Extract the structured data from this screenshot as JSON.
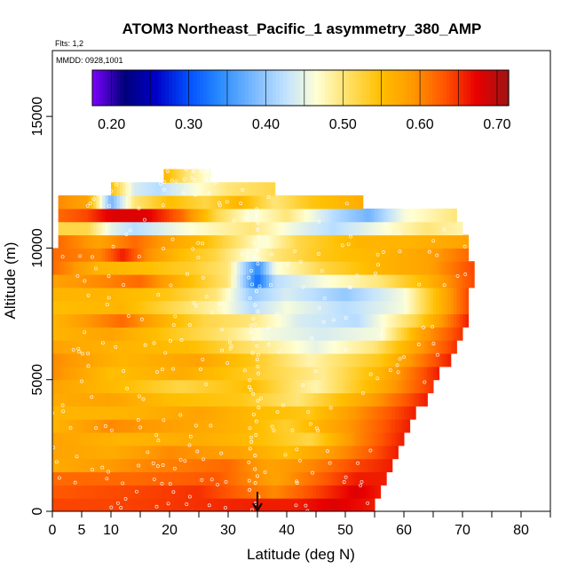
{
  "chart_data": {
    "type": "heatmap",
    "title": "ATOM3 Northeast_Pacific_1 asymmetry_380_AMP",
    "annotations": {
      "flights": "Flts: 1,2",
      "dates": "MMDD: 0928,1001"
    },
    "xlabel": "Latitude (deg N)",
    "ylabel": "Altitude (m)",
    "xlim": [
      0,
      85
    ],
    "ylim": [
      0,
      17500
    ],
    "x_ticks": [
      0,
      5,
      10,
      20,
      30,
      40,
      50,
      60,
      70,
      80
    ],
    "x_minor_ticks": [
      15,
      25,
      35,
      45,
      55,
      65,
      75,
      85
    ],
    "y_ticks": [
      0,
      5000,
      10000,
      15000
    ],
    "colorbar": {
      "min": 0.175,
      "max": 0.715,
      "ticks": [
        0.2,
        0.3,
        0.4,
        0.5,
        0.6,
        0.7
      ],
      "tick_labels": [
        "0.20",
        "0.30",
        "0.40",
        "0.50",
        "0.60",
        "0.70"
      ],
      "colors": [
        "#7d00ff",
        "#00007a",
        "#0000c8",
        "#0050ff",
        "#2b8cff",
        "#76b7ff",
        "#bfe1ff",
        "#ffffd5",
        "#ffe066",
        "#ffbf00",
        "#ff9900",
        "#ff5500",
        "#e80000",
        "#a01414"
      ]
    },
    "marker": {
      "latitude": 35,
      "label": "arrow"
    },
    "rows": [
      {
        "alt_low": 0,
        "alt_high": 500,
        "lat_min": 0,
        "lat_max": 55,
        "values": [
          [
            0,
            0.64
          ],
          [
            10,
            0.64
          ],
          [
            25,
            0.65
          ],
          [
            36,
            0.66
          ],
          [
            42,
            0.66
          ],
          [
            48,
            0.68
          ],
          [
            55,
            0.66
          ]
        ]
      },
      {
        "alt_low": 500,
        "alt_high": 1000,
        "lat_min": 0,
        "lat_max": 56,
        "values": [
          [
            0,
            0.63
          ],
          [
            15,
            0.64
          ],
          [
            25,
            0.65
          ],
          [
            38,
            0.6
          ],
          [
            45,
            0.64
          ],
          [
            52,
            0.68
          ],
          [
            56,
            0.66
          ]
        ]
      },
      {
        "alt_low": 1000,
        "alt_high": 1500,
        "lat_min": 0,
        "lat_max": 57,
        "values": [
          [
            0,
            0.62
          ],
          [
            15,
            0.62
          ],
          [
            28,
            0.63
          ],
          [
            38,
            0.58
          ],
          [
            45,
            0.62
          ],
          [
            52,
            0.66
          ],
          [
            57,
            0.66
          ]
        ]
      },
      {
        "alt_low": 1500,
        "alt_high": 2000,
        "lat_min": 0,
        "lat_max": 58,
        "values": [
          [
            0,
            0.57
          ],
          [
            15,
            0.6
          ],
          [
            30,
            0.62
          ],
          [
            37,
            0.58
          ],
          [
            44,
            0.6
          ],
          [
            52,
            0.64
          ],
          [
            58,
            0.66
          ]
        ]
      },
      {
        "alt_low": 2000,
        "alt_high": 2500,
        "lat_min": 0,
        "lat_max": 59,
        "values": [
          [
            0,
            0.58
          ],
          [
            10,
            0.57
          ],
          [
            20,
            0.6
          ],
          [
            32,
            0.58
          ],
          [
            40,
            0.55
          ],
          [
            50,
            0.6
          ],
          [
            59,
            0.66
          ]
        ]
      },
      {
        "alt_low": 2500,
        "alt_high": 3000,
        "lat_min": 0,
        "lat_max": 60,
        "values": [
          [
            0,
            0.58
          ],
          [
            12,
            0.56
          ],
          [
            25,
            0.57
          ],
          [
            35,
            0.55
          ],
          [
            44,
            0.52
          ],
          [
            52,
            0.6
          ],
          [
            60,
            0.66
          ]
        ]
      },
      {
        "alt_low": 3000,
        "alt_high": 3500,
        "lat_min": 0,
        "lat_max": 61,
        "values": [
          [
            0,
            0.56
          ],
          [
            10,
            0.6
          ],
          [
            22,
            0.58
          ],
          [
            33,
            0.56
          ],
          [
            40,
            0.53
          ],
          [
            52,
            0.6
          ],
          [
            61,
            0.66
          ]
        ]
      },
      {
        "alt_low": 3500,
        "alt_high": 4000,
        "lat_min": 0,
        "lat_max": 62,
        "values": [
          [
            0,
            0.56
          ],
          [
            12,
            0.56
          ],
          [
            25,
            0.58
          ],
          [
            36,
            0.55
          ],
          [
            44,
            0.54
          ],
          [
            53,
            0.6
          ],
          [
            62,
            0.66
          ]
        ]
      },
      {
        "alt_low": 4000,
        "alt_high": 4500,
        "lat_min": 0,
        "lat_max": 64,
        "values": [
          [
            0,
            0.57
          ],
          [
            10,
            0.58
          ],
          [
            20,
            0.55
          ],
          [
            32,
            0.54
          ],
          [
            42,
            0.5
          ],
          [
            54,
            0.58
          ],
          [
            64,
            0.66
          ]
        ]
      },
      {
        "alt_low": 4500,
        "alt_high": 5000,
        "lat_min": 0,
        "lat_max": 65,
        "values": [
          [
            0,
            0.58
          ],
          [
            12,
            0.55
          ],
          [
            22,
            0.52
          ],
          [
            34,
            0.55
          ],
          [
            45,
            0.48
          ],
          [
            55,
            0.56
          ],
          [
            65,
            0.65
          ]
        ]
      },
      {
        "alt_low": 5000,
        "alt_high": 5500,
        "lat_min": 0,
        "lat_max": 66,
        "values": [
          [
            0,
            0.6
          ],
          [
            10,
            0.55
          ],
          [
            22,
            0.57
          ],
          [
            35,
            0.53
          ],
          [
            46,
            0.49
          ],
          [
            56,
            0.56
          ],
          [
            66,
            0.66
          ]
        ]
      },
      {
        "alt_low": 5500,
        "alt_high": 6000,
        "lat_min": 0,
        "lat_max": 68,
        "values": [
          [
            0,
            0.6
          ],
          [
            12,
            0.56
          ],
          [
            25,
            0.58
          ],
          [
            34,
            0.54
          ],
          [
            44,
            0.48
          ],
          [
            56,
            0.54
          ],
          [
            68,
            0.66
          ]
        ]
      },
      {
        "alt_low": 6000,
        "alt_high": 6500,
        "lat_min": 0,
        "lat_max": 69,
        "values": [
          [
            0,
            0.58
          ],
          [
            12,
            0.56
          ],
          [
            24,
            0.55
          ],
          [
            35,
            0.5
          ],
          [
            45,
            0.45
          ],
          [
            55,
            0.5
          ],
          [
            62,
            0.58
          ],
          [
            69,
            0.65
          ]
        ]
      },
      {
        "alt_low": 6500,
        "alt_high": 7000,
        "lat_min": 0,
        "lat_max": 70,
        "values": [
          [
            0,
            0.56
          ],
          [
            10,
            0.58
          ],
          [
            20,
            0.54
          ],
          [
            30,
            0.5
          ],
          [
            36,
            0.46
          ],
          [
            46,
            0.44
          ],
          [
            56,
            0.46
          ],
          [
            63,
            0.58
          ],
          [
            70,
            0.65
          ]
        ]
      },
      {
        "alt_low": 7000,
        "alt_high": 7500,
        "lat_min": 0,
        "lat_max": 71,
        "values": [
          [
            0,
            0.56
          ],
          [
            12,
            0.62
          ],
          [
            18,
            0.57
          ],
          [
            26,
            0.52
          ],
          [
            34,
            0.5
          ],
          [
            42,
            0.44
          ],
          [
            52,
            0.42
          ],
          [
            62,
            0.52
          ],
          [
            71,
            0.66
          ]
        ]
      },
      {
        "alt_low": 7500,
        "alt_high": 8000,
        "lat_min": 0,
        "lat_max": 71,
        "values": [
          [
            0,
            0.55
          ],
          [
            12,
            0.56
          ],
          [
            20,
            0.52
          ],
          [
            28,
            0.48
          ],
          [
            34,
            0.42
          ],
          [
            40,
            0.46
          ],
          [
            50,
            0.42
          ],
          [
            60,
            0.46
          ],
          [
            71,
            0.64
          ]
        ]
      },
      {
        "alt_low": 8000,
        "alt_high": 8500,
        "lat_min": 0,
        "lat_max": 71,
        "values": [
          [
            0,
            0.56
          ],
          [
            10,
            0.56
          ],
          [
            20,
            0.54
          ],
          [
            28,
            0.5
          ],
          [
            34,
            0.4
          ],
          [
            40,
            0.44
          ],
          [
            50,
            0.4
          ],
          [
            60,
            0.46
          ],
          [
            71,
            0.64
          ]
        ]
      },
      {
        "alt_low": 8500,
        "alt_high": 9000,
        "lat_min": 0,
        "lat_max": 72,
        "values": [
          [
            0,
            0.58
          ],
          [
            8,
            0.6
          ],
          [
            15,
            0.62
          ],
          [
            22,
            0.56
          ],
          [
            30,
            0.5
          ],
          [
            35,
            0.32
          ],
          [
            38,
            0.42
          ],
          [
            46,
            0.46
          ],
          [
            56,
            0.5
          ],
          [
            64,
            0.56
          ],
          [
            72,
            0.64
          ]
        ]
      },
      {
        "alt_low": 9000,
        "alt_high": 9500,
        "lat_min": 0,
        "lat_max": 72,
        "values": [
          [
            0,
            0.62
          ],
          [
            8,
            0.56
          ],
          [
            16,
            0.55
          ],
          [
            24,
            0.53
          ],
          [
            30,
            0.5
          ],
          [
            35,
            0.34
          ],
          [
            38,
            0.46
          ],
          [
            46,
            0.52
          ],
          [
            56,
            0.56
          ],
          [
            64,
            0.58
          ],
          [
            72,
            0.64
          ]
        ]
      },
      {
        "alt_low": 9500,
        "alt_high": 10000,
        "lat_min": 0,
        "lat_max": 71,
        "values": [
          [
            0,
            0.62
          ],
          [
            8,
            0.6
          ],
          [
            12,
            0.66
          ],
          [
            16,
            0.6
          ],
          [
            22,
            0.55
          ],
          [
            28,
            0.52
          ],
          [
            34,
            0.46
          ],
          [
            38,
            0.5
          ],
          [
            46,
            0.54
          ],
          [
            56,
            0.56
          ],
          [
            64,
            0.58
          ],
          [
            71,
            0.62
          ]
        ]
      },
      {
        "alt_low": 10000,
        "alt_high": 10500,
        "lat_min": 1,
        "lat_max": 71,
        "values": [
          [
            1,
            0.62
          ],
          [
            8,
            0.58
          ],
          [
            14,
            0.62
          ],
          [
            20,
            0.58
          ],
          [
            26,
            0.55
          ],
          [
            32,
            0.5
          ],
          [
            36,
            0.46
          ],
          [
            42,
            0.52
          ],
          [
            52,
            0.56
          ],
          [
            60,
            0.56
          ],
          [
            71,
            0.58
          ]
        ]
      },
      {
        "alt_low": 10500,
        "alt_high": 11000,
        "lat_min": 1,
        "lat_max": 70,
        "values": [
          [
            1,
            0.52
          ],
          [
            6,
            0.52
          ],
          [
            10,
            0.45
          ],
          [
            14,
            0.42
          ],
          [
            22,
            0.46
          ],
          [
            28,
            0.48
          ],
          [
            34,
            0.5
          ],
          [
            40,
            0.46
          ],
          [
            48,
            0.42
          ],
          [
            56,
            0.46
          ],
          [
            64,
            0.5
          ],
          [
            70,
            0.48
          ]
        ]
      },
      {
        "alt_low": 11000,
        "alt_high": 11500,
        "lat_min": 1,
        "lat_max": 69,
        "values": [
          [
            1,
            0.62
          ],
          [
            6,
            0.64
          ],
          [
            10,
            0.68
          ],
          [
            16,
            0.68
          ],
          [
            22,
            0.62
          ],
          [
            28,
            0.52
          ],
          [
            34,
            0.46
          ],
          [
            40,
            0.5
          ],
          [
            48,
            0.42
          ],
          [
            54,
            0.38
          ],
          [
            60,
            0.46
          ],
          [
            69,
            0.5
          ]
        ]
      },
      {
        "alt_low": 11500,
        "alt_high": 12000,
        "lat_min": 1,
        "lat_max": 53,
        "values": [
          [
            1,
            0.6
          ],
          [
            6,
            0.58
          ],
          [
            10,
            0.38
          ],
          [
            14,
            0.5
          ],
          [
            20,
            0.55
          ],
          [
            26,
            0.52
          ],
          [
            32,
            0.56
          ],
          [
            38,
            0.5
          ],
          [
            44,
            0.54
          ],
          [
            53,
            0.57
          ]
        ]
      },
      {
        "alt_low": 12000,
        "alt_high": 12500,
        "lat_min": 10,
        "lat_max": 38,
        "values": [
          [
            10,
            0.55
          ],
          [
            14,
            0.44
          ],
          [
            18,
            0.42
          ],
          [
            24,
            0.46
          ],
          [
            30,
            0.5
          ],
          [
            38,
            0.52
          ]
        ]
      },
      {
        "alt_low": 12500,
        "alt_high": 13000,
        "lat_min": 19,
        "lat_max": 27,
        "values": [
          [
            19,
            0.56
          ],
          [
            23,
            0.5
          ],
          [
            27,
            0.46
          ]
        ]
      }
    ]
  }
}
